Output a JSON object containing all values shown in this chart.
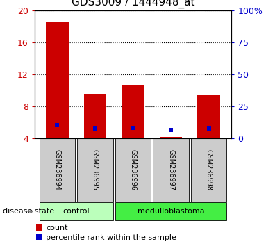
{
  "title": "GDS3009 / 1444948_at",
  "samples": [
    "GSM236994",
    "GSM236995",
    "GSM236996",
    "GSM236997",
    "GSM236998"
  ],
  "bar_values": [
    18.6,
    9.6,
    10.7,
    4.2,
    9.4
  ],
  "percentile_values": [
    10.6,
    7.6,
    8.1,
    6.5,
    7.7
  ],
  "bar_color": "#cc0000",
  "percentile_color": "#0000cc",
  "ylim_left": [
    4,
    20
  ],
  "ylim_right": [
    0,
    100
  ],
  "yticks_left": [
    4,
    8,
    12,
    16,
    20
  ],
  "yticks_right": [
    0,
    25,
    50,
    75,
    100
  ],
  "ytick_labels_right": [
    "0",
    "25",
    "50",
    "75",
    "100%"
  ],
  "groups": [
    {
      "label": "control",
      "indices": [
        0,
        1
      ],
      "color": "#bbffbb"
    },
    {
      "label": "medulloblastoma",
      "indices": [
        2,
        3,
        4
      ],
      "color": "#44ee44"
    }
  ],
  "group_label": "disease state",
  "legend_count_label": "count",
  "legend_percentile_label": "percentile rank within the sample",
  "bar_width": 0.6,
  "baseline": 4,
  "bg_plot": "#ffffff",
  "bg_xtick": "#cccccc",
  "left_tick_color": "#cc0000",
  "right_tick_color": "#0000cc",
  "title_fontsize": 11,
  "tick_fontsize": 9,
  "label_fontsize": 8,
  "sample_fontsize": 7,
  "legend_fontsize": 8
}
